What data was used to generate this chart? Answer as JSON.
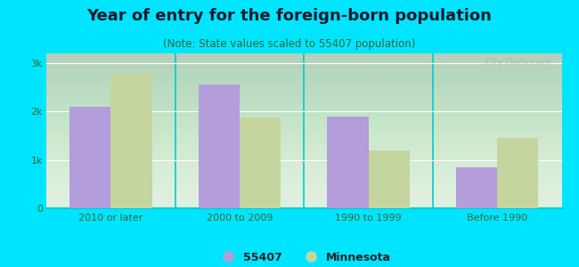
{
  "title": "Year of entry for the foreign-born population",
  "subtitle": "(Note: State values scaled to 55407 population)",
  "categories": [
    "2010 or later",
    "2000 to 2009",
    "1990 to 1999",
    "Before 1990"
  ],
  "series_55407": [
    2100,
    2560,
    1900,
    850
  ],
  "series_mn": [
    2800,
    1880,
    1200,
    1450
  ],
  "color_55407": "#b39ddb",
  "color_mn": "#c5d5a0",
  "background_outer": "#00e5ff",
  "background_inner_top": "#e8f0e8",
  "background_inner_bottom": "#d4edda",
  "ylim": [
    0,
    3200
  ],
  "yticks": [
    0,
    1000,
    2000,
    3000
  ],
  "ytick_labels": [
    "0",
    "1k",
    "2k",
    "3k"
  ],
  "legend_55407": "55407",
  "legend_mn": "Minnesota",
  "title_fontsize": 13,
  "subtitle_fontsize": 8.5,
  "bar_width": 0.32,
  "watermark": "City-Data.com"
}
